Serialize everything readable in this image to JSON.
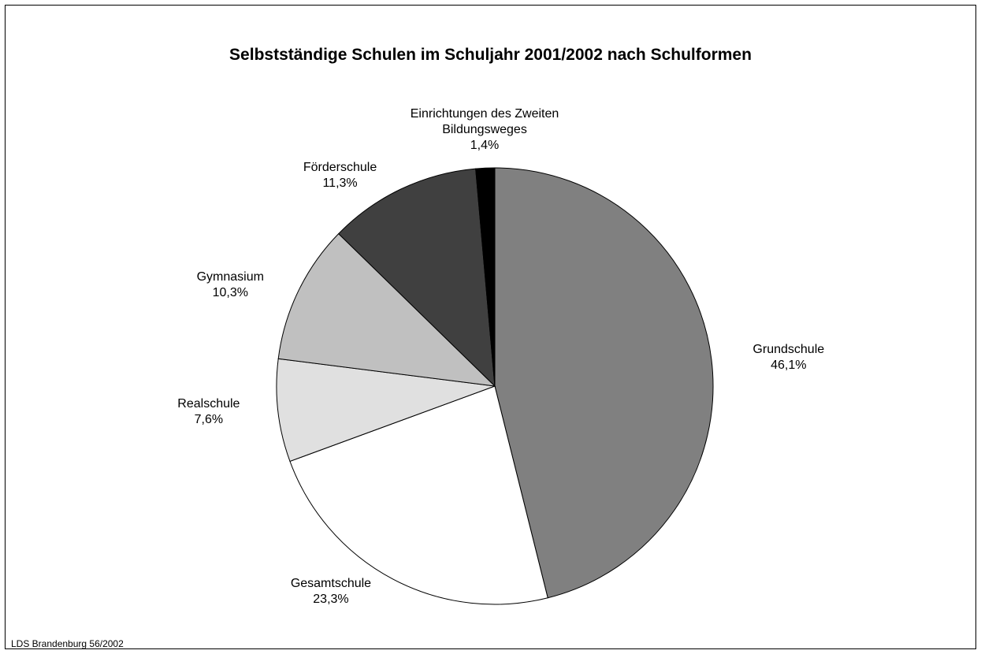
{
  "chart_data": {
    "type": "pie",
    "title": "Selbstständige Schulen im Schuljahr 2001/2002 nach Schulformen",
    "source": "LDS Brandenburg 56/2002",
    "categories": [
      "Grundschule",
      "Gesamtschule",
      "Realschule",
      "Gymnasium",
      "Förderschule",
      "Einrichtungen des Zweiten Bildungsweges"
    ],
    "values": [
      46.1,
      23.3,
      7.6,
      10.3,
      11.3,
      1.4
    ],
    "value_labels": [
      "46,1%",
      "23,3%",
      "7,6%",
      "10,3%",
      "11,3%",
      "1,4%"
    ],
    "colors": [
      "#808080",
      "#ffffff",
      "#e0e0e0",
      "#c0c0c0",
      "#404040",
      "#000000"
    ]
  }
}
